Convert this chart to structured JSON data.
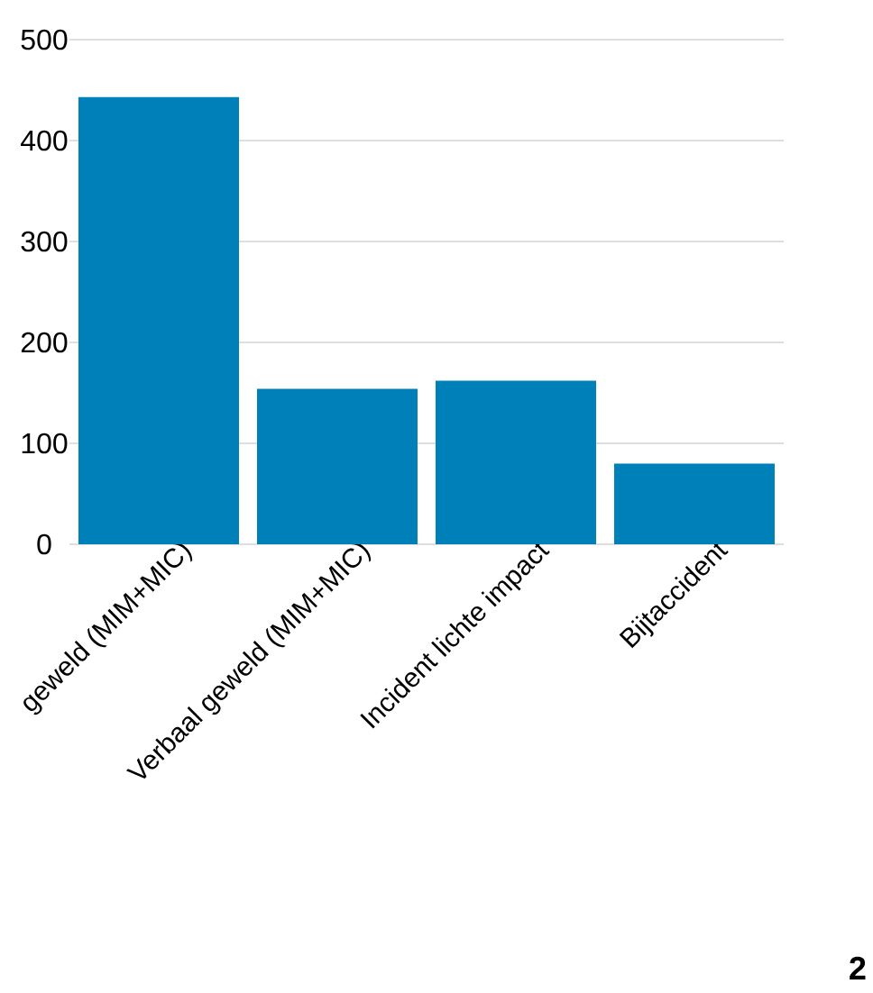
{
  "chart_data": {
    "type": "bar",
    "categories": [
      "geweld (MIM+MIC)",
      "Verbaal geweld (MIM+MIC)",
      "Incident lichte impact",
      "Bijtaccident"
    ],
    "values": [
      443,
      154,
      162,
      80
    ],
    "color": "#0080b8",
    "ylim": [
      0,
      500
    ],
    "yticks": [
      0,
      100,
      200,
      300,
      400,
      500
    ],
    "grid": "y",
    "annotations": [
      "2"
    ]
  }
}
